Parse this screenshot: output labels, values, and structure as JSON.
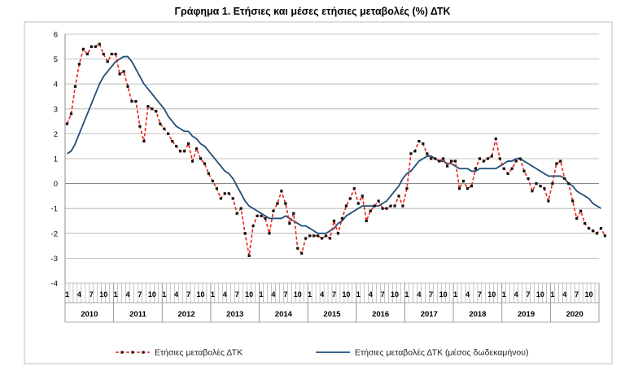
{
  "chart_data": {
    "type": "line",
    "title": "Γράφημα 1. Ετήσιες και μέσες ετήσιες μεταβολές (%) ΔΤΚ",
    "ylim": [
      -4,
      6
    ],
    "yticks": [
      "-4",
      "-3",
      "-2",
      "-1",
      "0",
      "1",
      "2",
      "3",
      "4",
      "5",
      "6"
    ],
    "grid": true,
    "legend_position": "bottom",
    "years": [
      "2010",
      "2011",
      "2012",
      "2013",
      "2014",
      "2015",
      "2016",
      "2017",
      "2018",
      "2019",
      "2020"
    ],
    "month_ticks": [
      "1",
      "4",
      "7",
      "10"
    ],
    "series": [
      {
        "name": "Ετήσιες μεταβολές ΔΤΚ",
        "color": "#e8261c",
        "style": "dashed-markers",
        "values": [
          2.4,
          2.8,
          3.9,
          4.8,
          5.4,
          5.2,
          5.5,
          5.5,
          5.6,
          5.2,
          4.9,
          5.2,
          5.2,
          4.4,
          4.5,
          3.9,
          3.3,
          3.3,
          2.3,
          1.7,
          3.1,
          3.0,
          2.9,
          2.4,
          2.2,
          2.0,
          1.7,
          1.5,
          1.3,
          1.3,
          1.6,
          0.9,
          1.4,
          1.0,
          0.8,
          0.4,
          0.1,
          -0.2,
          -0.6,
          -0.4,
          -0.4,
          -0.6,
          -1.2,
          -1.0,
          -2.0,
          -2.9,
          -1.7,
          -1.3,
          -1.3,
          -1.4,
          -2.0,
          -1.1,
          -0.8,
          -0.3,
          -0.8,
          -1.6,
          -1.2,
          -2.6,
          -2.8,
          -2.2,
          -2.1,
          -2.1,
          -2.1,
          -2.2,
          -2.1,
          -2.2,
          -1.5,
          -2.0,
          -1.4,
          -0.9,
          -0.6,
          -0.2,
          -0.8,
          -0.5,
          -1.5,
          -1.1,
          -0.9,
          -0.7,
          -1.0,
          -1.0,
          -0.9,
          -0.9,
          -0.5,
          -0.9,
          -0.2,
          1.2,
          1.3,
          1.7,
          1.6,
          1.2,
          1.0,
          1.0,
          0.9,
          1.0,
          0.7,
          0.9,
          0.9,
          -0.2,
          0.1,
          -0.2,
          -0.1,
          0.6,
          1.0,
          0.9,
          1.0,
          1.1,
          1.8,
          1.0,
          0.6,
          0.4,
          0.6,
          0.9,
          1.0,
          0.5,
          0.2,
          -0.3,
          0.0,
          -0.1,
          -0.2,
          -0.7,
          0.0,
          0.8,
          0.9,
          0.2,
          0.0,
          -0.7,
          -1.4,
          -1.1,
          -1.6,
          -1.8,
          -1.9,
          -2.0,
          -1.8,
          -2.1
        ]
      },
      {
        "name": "Ετήσιες μεταβολές ΔΤΚ (μέσος δωδεκαμήνου)",
        "color": "#1f4e79",
        "style": "solid",
        "values": [
          1.2,
          1.3,
          1.6,
          2.0,
          2.4,
          2.8,
          3.2,
          3.6,
          4.0,
          4.3,
          4.5,
          4.7,
          4.9,
          5.0,
          5.1,
          5.1,
          4.9,
          4.6,
          4.3,
          4.0,
          3.8,
          3.6,
          3.4,
          3.2,
          3.0,
          2.7,
          2.5,
          2.3,
          2.2,
          2.1,
          2.1,
          1.9,
          1.8,
          1.6,
          1.5,
          1.3,
          1.1,
          0.9,
          0.7,
          0.5,
          0.4,
          0.2,
          -0.1,
          -0.4,
          -0.7,
          -0.9,
          -1.0,
          -1.1,
          -1.2,
          -1.3,
          -1.4,
          -1.4,
          -1.4,
          -1.4,
          -1.3,
          -1.4,
          -1.5,
          -1.6,
          -1.7,
          -1.7,
          -1.8,
          -1.9,
          -2.0,
          -2.0,
          -2.0,
          -1.9,
          -1.8,
          -1.6,
          -1.5,
          -1.3,
          -1.2,
          -1.1,
          -1.0,
          -0.9,
          -0.9,
          -0.9,
          -0.9,
          -0.9,
          -0.8,
          -0.7,
          -0.5,
          -0.3,
          -0.1,
          0.2,
          0.4,
          0.5,
          0.7,
          0.9,
          1.0,
          1.1,
          1.1,
          1.0,
          0.9,
          0.9,
          0.8,
          0.8,
          0.7,
          0.6,
          0.6,
          0.6,
          0.5,
          0.5,
          0.6,
          0.6,
          0.6,
          0.6,
          0.6,
          0.7,
          0.8,
          0.9,
          0.9,
          1.0,
          1.0,
          0.9,
          0.8,
          0.7,
          0.6,
          0.5,
          0.4,
          0.3,
          0.3,
          0.3,
          0.3,
          0.2,
          0.0,
          -0.1,
          -0.3,
          -0.4,
          -0.5,
          -0.6,
          -0.8,
          -0.9,
          -1.0
        ]
      }
    ]
  }
}
